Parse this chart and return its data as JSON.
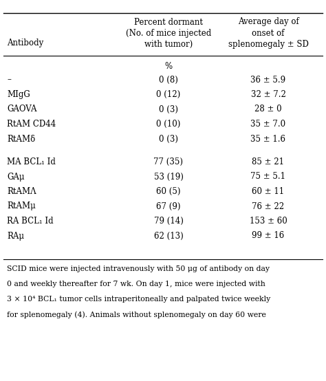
{
  "col_headers": [
    "Antibody",
    "Percent dormant\n(No. of mice injected\nwith tumor)",
    "Average day of\nonset of\nsplenomegaly ± SD"
  ],
  "percent_unit_row": "%",
  "rows": [
    [
      "–",
      "0 (8)",
      "36 ± 5.9"
    ],
    [
      "MIgG",
      "0 (12)",
      "32 ± 7.2"
    ],
    [
      "GAOVA",
      "0 (3)",
      "28 ± 0"
    ],
    [
      "RtAM CD44",
      "0 (10)",
      "35 ± 7.0"
    ],
    [
      "RtAMδ",
      "0 (3)",
      "35 ± 1.6"
    ],
    [
      "MA BCL₁ Id",
      "77 (35)",
      "85 ± 21"
    ],
    [
      "GAμ",
      "53 (19)",
      "75 ± 5.1"
    ],
    [
      "RtAMΛ",
      "60 (5)",
      "60 ± 11"
    ],
    [
      "RtAMμ",
      "67 (9)",
      "76 ± 22"
    ],
    [
      "RA BCL₁ Id",
      "79 (14)",
      "153 ± 60"
    ],
    [
      "RAμ",
      "62 (13)",
      "99 ± 16"
    ]
  ],
  "footnote_lines": [
    "SCID mice were injected intravenously with 50 μg of antibody on day",
    "0 and weekly thereafter for 7 wk. On day 1, mice were injected with",
    "3 × 10⁴ BCL₁ tumor cells intraperitoneally and palpated twice weekly",
    "for splenomegaly (4). Animals without splenomegaly on day 60 were"
  ],
  "bg_color": "#ffffff",
  "text_color": "#000000",
  "font_size": 8.5,
  "footnote_font_size": 7.8
}
